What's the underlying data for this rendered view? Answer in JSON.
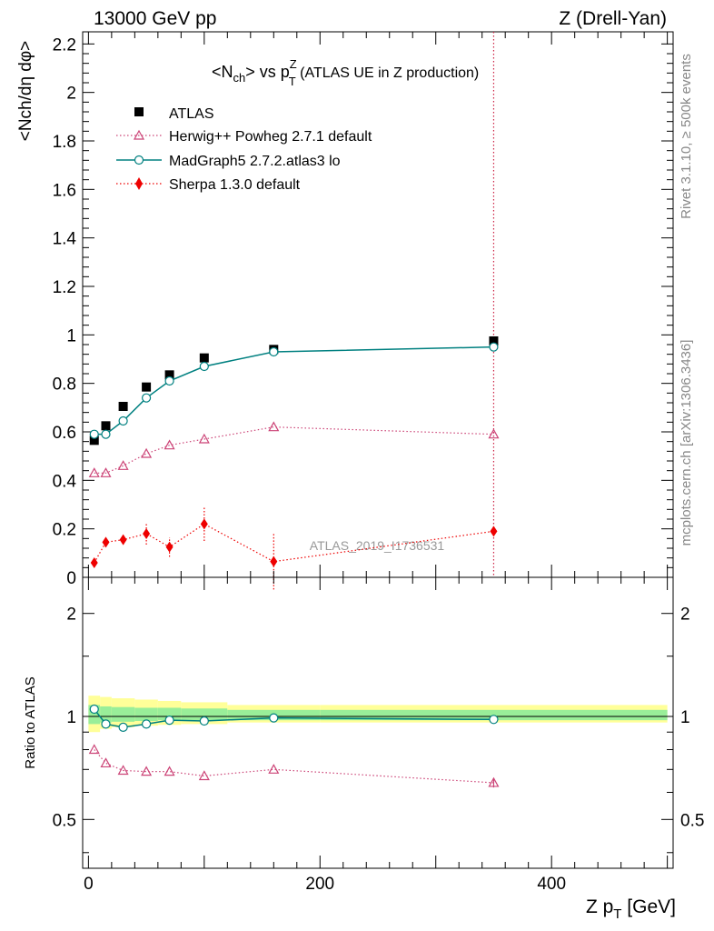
{
  "header": {
    "left": "13000 GeV pp",
    "right": "Z (Drell-Yan)"
  },
  "side_labels": {
    "rivet": "Rivet 3.1.10, ≥ 500k events",
    "mcplots": "mcplots.cern.ch [arXiv:1306.3436]"
  },
  "chart_data": [
    {
      "type": "scatter",
      "title": "<Nch> vs pTZ (ATLAS UE in Z production)",
      "title_parts": {
        "n": "<N",
        "ch": "ch",
        "vs": "> vs p",
        "sup": "Z",
        "sub": "T",
        "rest": " (ATLAS UE in Z production)"
      },
      "ylabel": "<Nch/dη dφ>",
      "xlim": [
        -5,
        505
      ],
      "ylim": [
        0,
        2.25
      ],
      "yticks": [
        0,
        0.2,
        0.4,
        0.6,
        0.8,
        1,
        1.2,
        1.4,
        1.6,
        1.8,
        2,
        2.2
      ],
      "ytick_labels": [
        "0",
        "0.2",
        "0.4",
        "0.6",
        "0.8",
        "1",
        "1.2",
        "1.4",
        "1.6",
        "1.8",
        "2",
        "2.2"
      ],
      "watermark": "ATLAS_2019_I1736531",
      "legend_position": "top-left",
      "series": [
        {
          "name": "ATLAS",
          "marker": "square",
          "color": "#000000",
          "x": [
            5,
            15,
            30,
            50,
            70,
            100,
            160,
            350
          ],
          "y": [
            0.565,
            0.625,
            0.705,
            0.785,
            0.835,
            0.905,
            0.94,
            0.975
          ],
          "yerr": [
            0.005,
            0.005,
            0.005,
            0.005,
            0.005,
            0.005,
            0.005,
            0.012
          ]
        },
        {
          "name": "Herwig++ Powheg 2.7.1 default",
          "marker": "triangle-open",
          "line": "dotted",
          "color": "#cc4477",
          "x": [
            5,
            15,
            30,
            50,
            70,
            100,
            160,
            350
          ],
          "y": [
            0.43,
            0.43,
            0.46,
            0.51,
            0.545,
            0.57,
            0.62,
            0.59
          ],
          "yerr": [
            0.003,
            0.003,
            0.003,
            0.003,
            0.003,
            0.003,
            0.003,
            0.01
          ]
        },
        {
          "name": "MadGraph5 2.7.2.atlas3 lo",
          "marker": "circle-open",
          "line": "solid",
          "color": "#008080",
          "x": [
            5,
            15,
            30,
            50,
            70,
            100,
            160,
            350
          ],
          "y": [
            0.59,
            0.59,
            0.645,
            0.74,
            0.81,
            0.87,
            0.93,
            0.95
          ],
          "yerr": [
            0.003,
            0.003,
            0.003,
            0.003,
            0.003,
            0.003,
            0.003,
            0.012
          ]
        },
        {
          "name": "Sherpa 1.3.0 default",
          "marker": "diamond",
          "line": "dotted",
          "color": "#ee0000",
          "x": [
            5,
            15,
            30,
            50,
            70,
            100,
            160,
            350
          ],
          "y": [
            0.06,
            0.145,
            0.155,
            0.18,
            0.125,
            0.22,
            0.065,
            0.19
          ],
          "yerr": [
            0.015,
            0.02,
            0.02,
            0.045,
            0.04,
            0.07,
            0.115,
            0.01
          ]
        }
      ],
      "vertical_line": {
        "x": 350,
        "color": "#cc2244"
      }
    },
    {
      "type": "scatter",
      "ylabel": "Ratio to ATLAS",
      "xlabel": "Z pT [GeV]",
      "xlabel_parts": {
        "a": "Z p",
        "sub": "T",
        "b": " [GeV]"
      },
      "xlim": [
        -5,
        505
      ],
      "ylim": [
        0.36,
        2.55
      ],
      "yscale": "log",
      "yticks": [
        0.5,
        1,
        2
      ],
      "ytick_labels": [
        "0.5",
        "1",
        "2"
      ],
      "xticks": [
        0,
        200,
        400
      ],
      "xtick_labels": [
        "0",
        "200",
        "400"
      ],
      "bands": {
        "edges": [
          0,
          10,
          20,
          40,
          60,
          80,
          120,
          200,
          500
        ],
        "yellow": [
          [
            0.9,
            1.15
          ],
          [
            0.92,
            1.14
          ],
          [
            0.93,
            1.13
          ],
          [
            0.94,
            1.12
          ],
          [
            0.945,
            1.11
          ],
          [
            0.95,
            1.1
          ],
          [
            0.96,
            1.08
          ],
          [
            0.96,
            1.08
          ]
        ],
        "green": [
          [
            0.95,
            1.08
          ],
          [
            0.96,
            1.07
          ],
          [
            0.965,
            1.065
          ],
          [
            0.97,
            1.06
          ],
          [
            0.975,
            1.06
          ],
          [
            0.975,
            1.055
          ],
          [
            0.975,
            1.045
          ],
          [
            0.975,
            1.045
          ]
        ]
      },
      "series": [
        {
          "name": "Herwig++ Powheg 2.7.1 default",
          "color": "#cc4477",
          "x": [
            5,
            15,
            30,
            50,
            70,
            100,
            160,
            350
          ],
          "y": [
            0.8,
            0.73,
            0.695,
            0.69,
            0.69,
            0.67,
            0.7,
            0.64
          ],
          "yerr": [
            0,
            0,
            0,
            0,
            0,
            0,
            0,
            0.02
          ]
        },
        {
          "name": "MadGraph5 2.7.2.atlas3 lo",
          "color": "#008080",
          "x": [
            5,
            15,
            30,
            50,
            70,
            100,
            160,
            350
          ],
          "y": [
            1.05,
            0.95,
            0.93,
            0.95,
            0.975,
            0.97,
            0.99,
            0.98
          ],
          "yerr": [
            0,
            0,
            0,
            0,
            0,
            0,
            0,
            0.025
          ]
        }
      ]
    }
  ]
}
